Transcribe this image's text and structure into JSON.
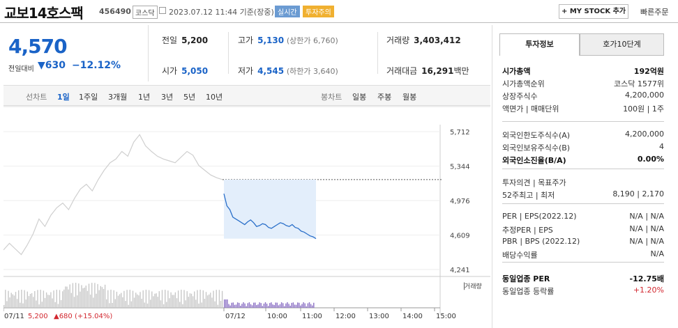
{
  "header": {
    "name": "교보14호스팩",
    "code": "456490",
    "market": "코스닥",
    "datetime": "2023.07.12 11:44 기준(장중)",
    "badge_realtime": "실시간",
    "badge_warning": "투자주의",
    "mystock_label": "+ MY STOCK 추가",
    "quick_order": "빠른주문"
  },
  "price": {
    "current": "4,570",
    "change_label": "전일대비",
    "change_arrow": "▼",
    "change_value": "630",
    "change_pct": "−12.12%"
  },
  "stats": {
    "prev_label": "전일",
    "prev": "5,200",
    "open_label": "시가",
    "open": "5,050",
    "high_label": "고가",
    "high": "5,130",
    "upper_limit": "(상한가 6,760)",
    "low_label": "저가",
    "low": "4,545",
    "lower_limit": "(하한가 3,640)",
    "volume_label": "거래량",
    "volume": "3,403,412",
    "amount_label": "거래대금",
    "amount": "16,291",
    "amount_unit": "백만"
  },
  "periods": {
    "line_label": "선차트",
    "items": [
      "1일",
      "1주일",
      "3개월",
      "1년",
      "3년",
      "5년",
      "10년"
    ],
    "candle_label": "봉차트",
    "candle_items": [
      "일봉",
      "주봉",
      "월봉"
    ]
  },
  "chart_data": {
    "type": "line",
    "yticks": [
      "5,712",
      "5,344",
      "4,976",
      "4,609",
      "4,241"
    ],
    "ylim": [
      4241,
      5712
    ],
    "prev_close": 5200,
    "xticks": [
      "07/11",
      "07/12",
      "10:00",
      "11:00",
      "12:00",
      "13:00",
      "14:00",
      "15:00"
    ],
    "volume_label": "거래량",
    "prev_day_summary": [
      "07/11",
      "5,200",
      "▲680 (+15.04%)"
    ],
    "series": [
      {
        "values": [
          4450,
          4520,
          4460,
          4400,
          4500,
          4620,
          4780,
          4700,
          4820,
          4900,
          4950,
          4880,
          5000,
          5100,
          5150,
          5080,
          5200,
          5300,
          5380,
          5420,
          5500,
          5450,
          5600,
          5680,
          5560,
          5500,
          5450,
          5420,
          5400,
          5380,
          5440,
          5500,
          5460,
          5350,
          5300,
          5250,
          5220,
          5200
        ]
      },
      {
        "values": [
          5050,
          4920,
          4880,
          4800,
          4780,
          4760,
          4740,
          4720,
          4750,
          4770,
          4740,
          4700,
          4710,
          4730,
          4720,
          4690,
          4680,
          4700,
          4720,
          4740,
          4730,
          4710,
          4700,
          4720,
          4690,
          4680,
          4650,
          4640,
          4620,
          4600,
          4590,
          4570
        ]
      }
    ]
  },
  "side": {
    "tab1": "투자정보",
    "tab2": "호가10단계",
    "rows": [
      {
        "k": "시가총액",
        "v": "192억원",
        "bold": true
      },
      {
        "k": "시가총액순위",
        "v": "코스닥 1577위"
      },
      {
        "k": "상장주식수",
        "v": "4,200,000"
      },
      {
        "k": "액면가 | 매매단위",
        "v": "100원 | 1주"
      },
      {
        "k": "외국인한도주식수(A)",
        "v": "4,200,000"
      },
      {
        "k": "외국인보유주식수(B)",
        "v": "4"
      },
      {
        "k": "외국인소진율(B/A)",
        "v": "0.00%",
        "bold": true
      },
      {
        "k": "투자의견 | 목표주가",
        "v": ""
      },
      {
        "k": "52주최고 | 최저",
        "v": "8,190 | 2,170"
      },
      {
        "k": "PER | EPS(2022.12)",
        "v": "N/A | N/A"
      },
      {
        "k": "추정PER | EPS",
        "v": "N/A | N/A"
      },
      {
        "k": "PBR | BPS (2022.12)",
        "v": "N/A | N/A"
      },
      {
        "k": "배당수익률",
        "v": "N/A"
      },
      {
        "k": "동일업종 PER",
        "v": "-12.75배",
        "bold": true
      },
      {
        "k": "동일업종 등락률",
        "v": "+1.20%",
        "red": true
      }
    ]
  }
}
